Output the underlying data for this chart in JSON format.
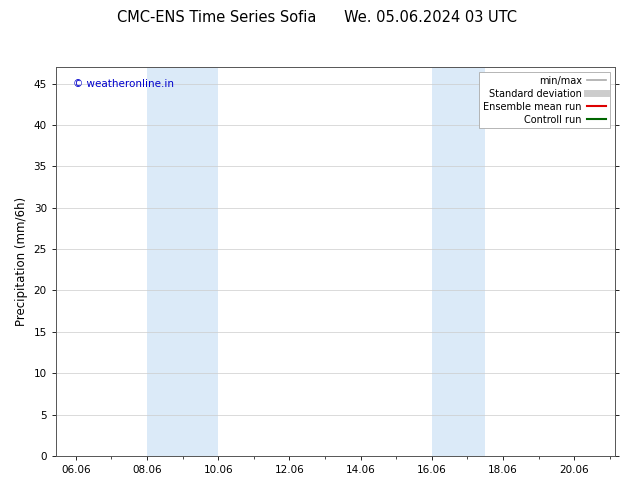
{
  "title_left": "CMC-ENS Time Series Sofia",
  "title_right": "We. 05.06.2024 03 UTC",
  "ylabel": "Precipitation (mm/6h)",
  "watermark": "© weatheronline.in",
  "watermark_color": "#0000cc",
  "xlim_start": 5.5,
  "xlim_end": 21.2,
  "ylim_bottom": 0,
  "ylim_top": 47,
  "yticks": [
    0,
    5,
    10,
    15,
    20,
    25,
    30,
    35,
    40,
    45
  ],
  "xtick_positions": [
    6.06,
    8.06,
    10.06,
    12.06,
    14.06,
    16.06,
    18.06,
    20.06
  ],
  "xtick_labels": [
    "06.06",
    "08.06",
    "10.06",
    "12.06",
    "14.06",
    "16.06",
    "18.06",
    "20.06"
  ],
  "shaded_bands": [
    {
      "x_start": 8.06,
      "x_end": 10.06,
      "color": "#dbeaf8"
    },
    {
      "x_start": 16.06,
      "x_end": 17.56,
      "color": "#dbeaf8"
    }
  ],
  "legend_entries": [
    {
      "label": "min/max",
      "color": "#aaaaaa",
      "lw": 1.2,
      "style": "solid"
    },
    {
      "label": "Standard deviation",
      "color": "#cccccc",
      "lw": 5,
      "style": "solid"
    },
    {
      "label": "Ensemble mean run",
      "color": "#dd0000",
      "lw": 1.5,
      "style": "solid"
    },
    {
      "label": "Controll run",
      "color": "#006600",
      "lw": 1.5,
      "style": "solid"
    }
  ],
  "background_color": "#ffffff",
  "plot_bg_color": "#ffffff",
  "grid_color": "#cccccc",
  "tick_label_fontsize": 7.5,
  "axis_label_fontsize": 8.5,
  "title_fontsize": 10.5,
  "watermark_fontsize": 7.5
}
